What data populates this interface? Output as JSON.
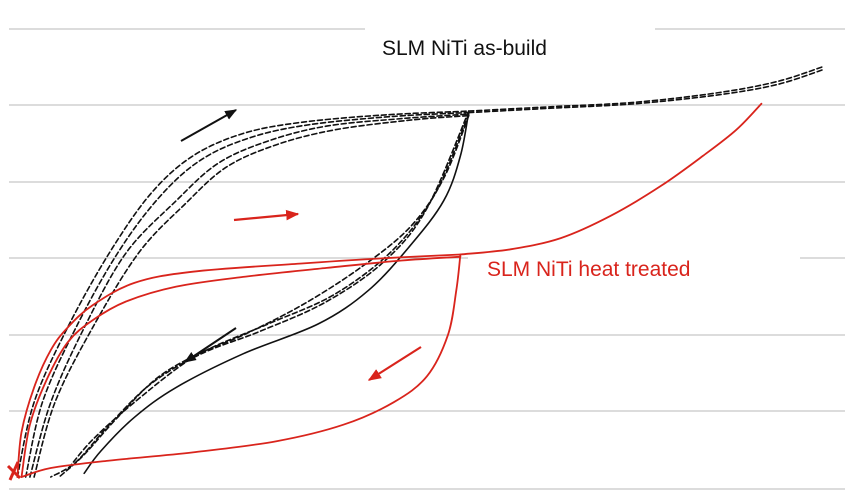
{
  "chart_data": {
    "type": "line",
    "title": "",
    "xlabel": "",
    "ylabel": "",
    "xlim": [
      0,
      100
    ],
    "ylim": [
      0,
      6
    ],
    "grid": true,
    "colors": {
      "black": "#111111",
      "red": "#d9241c",
      "grid": "#b9b9b9"
    },
    "annotations": [
      {
        "text": "SLM NiTi as-build",
        "color": "#111111"
      },
      {
        "text": "SLM NiTi heat treated",
        "color": "#d9241c"
      }
    ],
    "series": [
      {
        "group": "as-build",
        "color": "#111111",
        "dash": true,
        "points": [
          [
            1,
            0
          ],
          [
            3,
            1
          ],
          [
            7,
            2
          ],
          [
            12,
            3
          ],
          [
            17,
            3.8
          ],
          [
            22,
            4.3
          ],
          [
            28,
            4.6
          ],
          [
            35,
            4.75
          ],
          [
            45,
            4.85
          ],
          [
            55,
            4.9
          ]
        ]
      },
      {
        "group": "as-build",
        "color": "#111111",
        "dash": true,
        "points": [
          [
            2,
            0
          ],
          [
            4,
            1
          ],
          [
            8,
            2
          ],
          [
            13,
            3
          ],
          [
            18,
            3.75
          ],
          [
            23,
            4.25
          ],
          [
            29,
            4.55
          ],
          [
            36,
            4.72
          ],
          [
            46,
            4.83
          ],
          [
            55,
            4.88
          ]
        ]
      },
      {
        "group": "as-build",
        "color": "#111111",
        "dash": true,
        "points": [
          [
            2.5,
            0
          ],
          [
            5,
            1
          ],
          [
            9,
            2
          ],
          [
            14,
            3
          ],
          [
            20,
            3.7
          ],
          [
            25,
            4.2
          ],
          [
            31,
            4.5
          ],
          [
            38,
            4.7
          ],
          [
            47,
            4.8
          ],
          [
            55,
            4.86
          ]
        ]
      },
      {
        "group": "as-build",
        "color": "#111111",
        "dash": true,
        "points": [
          [
            3,
            0
          ],
          [
            5.5,
            1
          ],
          [
            10,
            2
          ],
          [
            15.5,
            3
          ],
          [
            21,
            3.65
          ],
          [
            26,
            4.15
          ],
          [
            32,
            4.45
          ],
          [
            39,
            4.65
          ],
          [
            48,
            4.78
          ],
          [
            55,
            4.84
          ]
        ]
      },
      {
        "group": "as-build",
        "color": "#111111",
        "dash": false,
        "points": [
          [
            55,
            4.9
          ],
          [
            54,
            4.3
          ],
          [
            52,
            3.7
          ],
          [
            48,
            3.1
          ],
          [
            43,
            2.5
          ],
          [
            37,
            2.05
          ],
          [
            28,
            1.65
          ],
          [
            20,
            1.2
          ],
          [
            15,
            0.8
          ],
          [
            11,
            0.35
          ],
          [
            9,
            0.05
          ]
        ]
      },
      {
        "group": "as-build",
        "color": "#111111",
        "dash": true,
        "points": [
          [
            55,
            4.84
          ],
          [
            52,
            4.0
          ],
          [
            48,
            3.35
          ],
          [
            42,
            2.8
          ],
          [
            35,
            2.3
          ],
          [
            28,
            1.9
          ],
          [
            22,
            1.6
          ],
          [
            15,
            1.0
          ],
          [
            10,
            0.5
          ],
          [
            7,
            0.1
          ]
        ]
      },
      {
        "group": "as-build",
        "color": "#111111",
        "dash": true,
        "points": [
          [
            55,
            4.86
          ],
          [
            51,
            3.8
          ],
          [
            46,
            3.05
          ],
          [
            39,
            2.45
          ],
          [
            31,
            2.05
          ],
          [
            24,
            1.72
          ],
          [
            18,
            1.35
          ],
          [
            13,
            0.8
          ],
          [
            9,
            0.3
          ],
          [
            6,
            0
          ]
        ]
      },
      {
        "group": "as-build",
        "color": "#111111",
        "dash": true,
        "points": [
          [
            55,
            4.9
          ],
          [
            50,
            3.6
          ],
          [
            45,
            2.9
          ],
          [
            38,
            2.35
          ],
          [
            30,
            1.95
          ],
          [
            23,
            1.65
          ],
          [
            17,
            1.25
          ],
          [
            12,
            0.7
          ],
          [
            8,
            0.2
          ],
          [
            5,
            0
          ]
        ]
      },
      {
        "group": "as-build",
        "color": "#111111",
        "dash": true,
        "points": [
          [
            55,
            4.9
          ],
          [
            65,
            4.96
          ],
          [
            75,
            5.02
          ],
          [
            85,
            5.15
          ],
          [
            92,
            5.3
          ],
          [
            97.5,
            5.5
          ]
        ]
      },
      {
        "group": "as-build",
        "color": "#111111",
        "dash": true,
        "points": [
          [
            55,
            4.88
          ],
          [
            65,
            4.94
          ],
          [
            75,
            5.0
          ],
          [
            85,
            5.12
          ],
          [
            92,
            5.26
          ],
          [
            97.5,
            5.46
          ]
        ]
      },
      {
        "group": "heat-treated",
        "color": "#d9241c",
        "dash": false,
        "points": [
          [
            1,
            0
          ],
          [
            1.5,
            0.6
          ],
          [
            3,
            1.2
          ],
          [
            5,
            1.7
          ],
          [
            7,
            2.0
          ],
          [
            10,
            2.3
          ],
          [
            15,
            2.6
          ],
          [
            22,
            2.75
          ],
          [
            35,
            2.86
          ],
          [
            45,
            2.93
          ],
          [
            54,
            2.98
          ]
        ]
      },
      {
        "group": "heat-treated",
        "color": "#d9241c",
        "dash": false,
        "points": [
          [
            1.5,
            0
          ],
          [
            2.5,
            0.7
          ],
          [
            4.5,
            1.3
          ],
          [
            7,
            1.8
          ],
          [
            10,
            2.1
          ],
          [
            14,
            2.35
          ],
          [
            20,
            2.55
          ],
          [
            28,
            2.68
          ],
          [
            38,
            2.8
          ],
          [
            47,
            2.9
          ],
          [
            54,
            2.95
          ]
        ]
      },
      {
        "group": "heat-treated",
        "color": "#d9241c",
        "dash": false,
        "points": [
          [
            54,
            2.98
          ],
          [
            53.5,
            2.5
          ],
          [
            52.5,
            1.9
          ],
          [
            50,
            1.35
          ],
          [
            46,
            1.0
          ],
          [
            40,
            0.7
          ],
          [
            32,
            0.48
          ],
          [
            22,
            0.33
          ],
          [
            12,
            0.22
          ],
          [
            5,
            0.12
          ],
          [
            1.5,
            0
          ]
        ]
      },
      {
        "group": "heat-treated",
        "color": "#d9241c",
        "dash": false,
        "points": [
          [
            54,
            2.98
          ],
          [
            60,
            3.05
          ],
          [
            66,
            3.2
          ],
          [
            72,
            3.5
          ],
          [
            78,
            3.9
          ],
          [
            83,
            4.3
          ],
          [
            87,
            4.65
          ],
          [
            90,
            5.0
          ]
        ]
      }
    ]
  }
}
